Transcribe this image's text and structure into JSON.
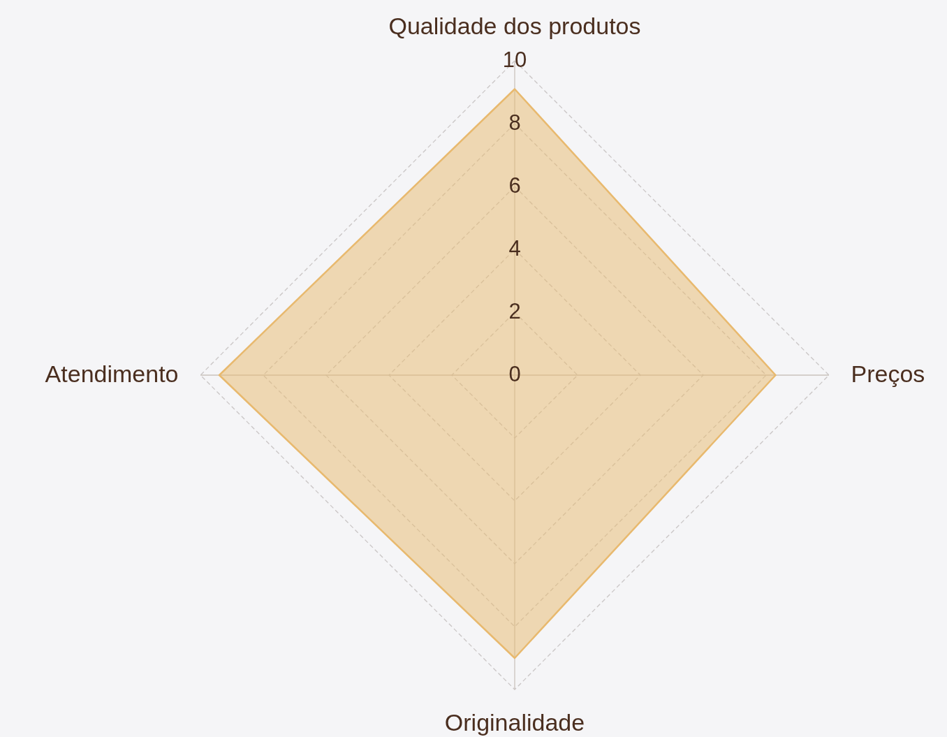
{
  "chart_data": {
    "type": "radar",
    "categories": [
      "Qualidade dos produtos",
      "Preços",
      "Originalidade",
      "Atendimento"
    ],
    "series": [
      {
        "color": "#e8b96e",
        "values": [
          9.1,
          8.3,
          9.0,
          9.4
        ]
      }
    ],
    "ylim": [
      0,
      10
    ],
    "yticks": [
      0,
      2,
      4,
      6,
      8,
      10
    ],
    "grid": true
  }
}
